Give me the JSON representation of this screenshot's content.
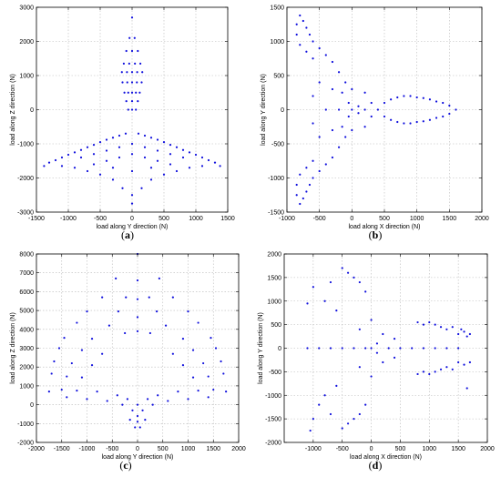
{
  "figure": {
    "panel_letters": [
      "(a)",
      "(b)",
      "(c)",
      "(d)"
    ]
  },
  "chart_data": [
    {
      "id": "a",
      "type": "scatter",
      "panel_label": "(a)",
      "xlabel": "load along Y direction (N)",
      "ylabel": "load along Z direction (N)",
      "xlim": [
        -1500,
        1500
      ],
      "ylim": [
        -3000,
        3000
      ],
      "xticks": [
        -1500,
        -1000,
        -500,
        0,
        500,
        1000,
        1500
      ],
      "yticks": [
        -3000,
        -2000,
        -1000,
        0,
        1000,
        2000,
        3000
      ],
      "grid": true,
      "marker_color": "#1010dd",
      "points": [
        [
          0,
          2700
        ],
        [
          -40,
          2100
        ],
        [
          40,
          2100
        ],
        [
          -90,
          1720
        ],
        [
          0,
          1720
        ],
        [
          90,
          1720
        ],
        [
          -130,
          1350
        ],
        [
          -45,
          1350
        ],
        [
          45,
          1350
        ],
        [
          130,
          1350
        ],
        [
          -160,
          1100
        ],
        [
          -80,
          1100
        ],
        [
          0,
          1100
        ],
        [
          80,
          1100
        ],
        [
          160,
          1100
        ],
        [
          -150,
          800
        ],
        [
          -75,
          800
        ],
        [
          0,
          800
        ],
        [
          75,
          800
        ],
        [
          150,
          800
        ],
        [
          -120,
          500
        ],
        [
          -60,
          500
        ],
        [
          0,
          500
        ],
        [
          60,
          500
        ],
        [
          120,
          500
        ],
        [
          -90,
          250
        ],
        [
          0,
          250
        ],
        [
          90,
          250
        ],
        [
          -60,
          0
        ],
        [
          0,
          0
        ],
        [
          60,
          0
        ],
        [
          -1380,
          -1650
        ],
        [
          -1300,
          -1550
        ],
        [
          -1200,
          -1480
        ],
        [
          -1100,
          -1400
        ],
        [
          -1000,
          -1320
        ],
        [
          -900,
          -1250
        ],
        [
          -800,
          -1180
        ],
        [
          -700,
          -1100
        ],
        [
          -600,
          -1030
        ],
        [
          -500,
          -950
        ],
        [
          -400,
          -880
        ],
        [
          -300,
          -820
        ],
        [
          -200,
          -760
        ],
        [
          -100,
          -700
        ],
        [
          1380,
          -1650
        ],
        [
          1300,
          -1550
        ],
        [
          1200,
          -1480
        ],
        [
          1100,
          -1400
        ],
        [
          1000,
          -1320
        ],
        [
          900,
          -1250
        ],
        [
          800,
          -1180
        ],
        [
          700,
          -1100
        ],
        [
          600,
          -1030
        ],
        [
          500,
          -950
        ],
        [
          400,
          -880
        ],
        [
          300,
          -820
        ],
        [
          200,
          -760
        ],
        [
          100,
          -700
        ],
        [
          -1100,
          -1650
        ],
        [
          -900,
          -1700
        ],
        [
          -700,
          -1800
        ],
        [
          -500,
          -1900
        ],
        [
          -300,
          -2050
        ],
        [
          -150,
          -2300
        ],
        [
          0,
          -2500
        ],
        [
          150,
          -2300
        ],
        [
          300,
          -2050
        ],
        [
          500,
          -1900
        ],
        [
          700,
          -1800
        ],
        [
          900,
          -1700
        ],
        [
          1100,
          -1650
        ],
        [
          0,
          -2750
        ],
        [
          -800,
          -1400
        ],
        [
          -600,
          -1300
        ],
        [
          -400,
          -1200
        ],
        [
          -200,
          -1100
        ],
        [
          0,
          -1000
        ],
        [
          200,
          -1100
        ],
        [
          400,
          -1200
        ],
        [
          600,
          -1300
        ],
        [
          800,
          -1400
        ],
        [
          -600,
          -1600
        ],
        [
          -400,
          -1500
        ],
        [
          -200,
          -1400
        ],
        [
          0,
          -1300
        ],
        [
          200,
          -1400
        ],
        [
          400,
          -1500
        ],
        [
          600,
          -1600
        ],
        [
          -300,
          -1700
        ],
        [
          0,
          -1800
        ],
        [
          300,
          -1700
        ]
      ]
    },
    {
      "id": "b",
      "type": "scatter",
      "panel_label": "(b)",
      "xlabel": "load along X direction (N)",
      "ylabel": "load along Y direction (N)",
      "xlim": [
        -1000,
        2000
      ],
      "ylim": [
        -1500,
        1500
      ],
      "xticks": [
        -1000,
        -500,
        0,
        500,
        1000,
        1500,
        2000
      ],
      "yticks": [
        -1500,
        -1000,
        -500,
        0,
        500,
        1000,
        1500
      ],
      "grid": true,
      "marker_color": "#1010dd",
      "points": [
        [
          1600,
          0
        ],
        [
          1500,
          60
        ],
        [
          1500,
          -60
        ],
        [
          1400,
          100
        ],
        [
          1400,
          -100
        ],
        [
          1300,
          120
        ],
        [
          1300,
          -120
        ],
        [
          1200,
          150
        ],
        [
          1200,
          -150
        ],
        [
          1100,
          170
        ],
        [
          1100,
          -170
        ],
        [
          1000,
          180
        ],
        [
          1000,
          -180
        ],
        [
          900,
          200
        ],
        [
          900,
          -200
        ],
        [
          800,
          200
        ],
        [
          800,
          -200
        ],
        [
          700,
          180
        ],
        [
          700,
          -180
        ],
        [
          600,
          150
        ],
        [
          600,
          -150
        ],
        [
          500,
          100
        ],
        [
          500,
          -100
        ],
        [
          -800,
          1380
        ],
        [
          -750,
          1300
        ],
        [
          -700,
          1200
        ],
        [
          -650,
          1100
        ],
        [
          -600,
          1000
        ],
        [
          -500,
          900
        ],
        [
          -400,
          800
        ],
        [
          -300,
          700
        ],
        [
          -200,
          550
        ],
        [
          -100,
          400
        ],
        [
          -850,
          1250
        ],
        [
          -850,
          1100
        ],
        [
          -800,
          950
        ],
        [
          -700,
          850
        ],
        [
          -600,
          750
        ],
        [
          -800,
          -1380
        ],
        [
          -750,
          -1300
        ],
        [
          -700,
          -1200
        ],
        [
          -650,
          -1100
        ],
        [
          -600,
          -1000
        ],
        [
          -500,
          -900
        ],
        [
          -400,
          -800
        ],
        [
          -300,
          -700
        ],
        [
          -200,
          -550
        ],
        [
          -100,
          -400
        ],
        [
          -850,
          -1250
        ],
        [
          -850,
          -1100
        ],
        [
          -800,
          -950
        ],
        [
          -700,
          -850
        ],
        [
          -600,
          -750
        ],
        [
          0,
          0
        ],
        [
          100,
          50
        ],
        [
          100,
          -50
        ],
        [
          -50,
          100
        ],
        [
          -50,
          -100
        ],
        [
          200,
          0
        ],
        [
          300,
          100
        ],
        [
          300,
          -100
        ],
        [
          -150,
          250
        ],
        [
          -150,
          -250
        ],
        [
          -300,
          300
        ],
        [
          -300,
          -300
        ],
        [
          -500,
          400
        ],
        [
          -500,
          -400
        ],
        [
          -600,
          200
        ],
        [
          -600,
          -200
        ],
        [
          0,
          300
        ],
        [
          0,
          -300
        ],
        [
          200,
          250
        ],
        [
          200,
          -250
        ],
        [
          400,
          0
        ],
        [
          -400,
          0
        ],
        [
          -200,
          0
        ]
      ]
    },
    {
      "id": "c",
      "type": "scatter",
      "panel_label": "(c)",
      "xlabel": "load along Y direction (N)",
      "ylabel": "load along Z direction (N)",
      "xlim": [
        -2000,
        2000
      ],
      "ylim": [
        -2000,
        8000
      ],
      "xticks": [
        -2000,
        -1500,
        -1000,
        -500,
        0,
        500,
        1000,
        1500,
        2000
      ],
      "yticks": [
        -2000,
        -1000,
        0,
        1000,
        2000,
        3000,
        4000,
        5000,
        6000,
        7000,
        8000
      ],
      "grid": true,
      "marker_color": "#1010dd",
      "points": [
        [
          0,
          8000
        ],
        [
          -430,
          6700
        ],
        [
          430,
          6700
        ],
        [
          0,
          6600
        ],
        [
          -700,
          5700
        ],
        [
          700,
          5700
        ],
        [
          -230,
          5700
        ],
        [
          230,
          5700
        ],
        [
          0,
          5600
        ],
        [
          -1000,
          4950
        ],
        [
          1000,
          4950
        ],
        [
          -380,
          4950
        ],
        [
          380,
          4950
        ],
        [
          0,
          4650
        ],
        [
          -1200,
          4350
        ],
        [
          1200,
          4350
        ],
        [
          -560,
          4200
        ],
        [
          560,
          4200
        ],
        [
          0,
          3900
        ],
        [
          -1450,
          3550
        ],
        [
          1450,
          3550
        ],
        [
          -900,
          3500
        ],
        [
          900,
          3500
        ],
        [
          -250,
          3800
        ],
        [
          250,
          3800
        ],
        [
          -1550,
          3000
        ],
        [
          1550,
          3000
        ],
        [
          -1100,
          2900
        ],
        [
          1100,
          2900
        ],
        [
          -700,
          2700
        ],
        [
          700,
          2700
        ],
        [
          -1650,
          2300
        ],
        [
          1650,
          2300
        ],
        [
          -1300,
          2200
        ],
        [
          1300,
          2200
        ],
        [
          -900,
          2100
        ],
        [
          900,
          2100
        ],
        [
          -1700,
          1650
        ],
        [
          1700,
          1650
        ],
        [
          -1400,
          1500
        ],
        [
          1400,
          1500
        ],
        [
          -1100,
          1450
        ],
        [
          1100,
          1450
        ],
        [
          -1750,
          700
        ],
        [
          1750,
          700
        ],
        [
          -1500,
          800
        ],
        [
          1500,
          800
        ],
        [
          -1200,
          750
        ],
        [
          1200,
          750
        ],
        [
          -800,
          700
        ],
        [
          800,
          700
        ],
        [
          -400,
          500
        ],
        [
          400,
          500
        ],
        [
          -200,
          300
        ],
        [
          200,
          300
        ],
        [
          -600,
          200
        ],
        [
          600,
          200
        ],
        [
          -1000,
          300
        ],
        [
          1000,
          300
        ],
        [
          -1400,
          400
        ],
        [
          1400,
          400
        ],
        [
          -300,
          0
        ],
        [
          300,
          0
        ],
        [
          -100,
          -300
        ],
        [
          100,
          -300
        ],
        [
          0,
          -600
        ],
        [
          0,
          -900
        ],
        [
          -50,
          -1200
        ],
        [
          50,
          -1200
        ],
        [
          -150,
          -800
        ],
        [
          150,
          -800
        ],
        [
          0,
          0
        ]
      ]
    },
    {
      "id": "d",
      "type": "scatter",
      "panel_label": "(d)",
      "xlabel": "load along X direction (N)",
      "ylabel": "load along Y direction (N)",
      "xlim": [
        -1500,
        2000
      ],
      "ylim": [
        -2000,
        2000
      ],
      "xticks": [
        -1000,
        -500,
        0,
        500,
        1000,
        1500,
        2000
      ],
      "yticks": [
        -2000,
        -1500,
        -1000,
        -500,
        0,
        500,
        1000,
        1500,
        2000
      ],
      "grid": true,
      "marker_color": "#1010dd",
      "points": [
        [
          1700,
          300
        ],
        [
          1650,
          250
        ],
        [
          1600,
          350
        ],
        [
          1550,
          400
        ],
        [
          1500,
          300
        ],
        [
          1400,
          450
        ],
        [
          1300,
          400
        ],
        [
          1200,
          450
        ],
        [
          1100,
          500
        ],
        [
          1000,
          550
        ],
        [
          900,
          500
        ],
        [
          800,
          550
        ],
        [
          1700,
          -300
        ],
        [
          1650,
          -850
        ],
        [
          1600,
          -350
        ],
        [
          1500,
          -300
        ],
        [
          1400,
          -450
        ],
        [
          1300,
          -400
        ],
        [
          1200,
          -450
        ],
        [
          1100,
          -500
        ],
        [
          1000,
          -550
        ],
        [
          900,
          -500
        ],
        [
          800,
          -550
        ],
        [
          1500,
          0
        ],
        [
          1300,
          0
        ],
        [
          1100,
          0
        ],
        [
          900,
          0
        ],
        [
          700,
          0
        ],
        [
          500,
          0
        ],
        [
          -1100,
          950
        ],
        [
          -1000,
          1300
        ],
        [
          -1000,
          -1500
        ],
        [
          -1050,
          -1750
        ],
        [
          -900,
          -1200
        ],
        [
          -500,
          1700
        ],
        [
          -400,
          1600
        ],
        [
          -300,
          1500
        ],
        [
          -200,
          1400
        ],
        [
          -100,
          1200
        ],
        [
          -500,
          -1700
        ],
        [
          -400,
          -1600
        ],
        [
          -300,
          -1500
        ],
        [
          -200,
          -1400
        ],
        [
          -100,
          -1200
        ],
        [
          -700,
          1400
        ],
        [
          -700,
          -1400
        ],
        [
          -800,
          1000
        ],
        [
          -800,
          -1000
        ],
        [
          -600,
          800
        ],
        [
          -600,
          -800
        ],
        [
          -1100,
          0
        ],
        [
          -900,
          0
        ],
        [
          -700,
          0
        ],
        [
          -500,
          0
        ],
        [
          -300,
          0
        ],
        [
          -100,
          0
        ],
        [
          0,
          0
        ],
        [
          100,
          100
        ],
        [
          100,
          -100
        ],
        [
          200,
          300
        ],
        [
          200,
          -300
        ],
        [
          300,
          0
        ],
        [
          -200,
          400
        ],
        [
          -200,
          -400
        ],
        [
          0,
          600
        ],
        [
          0,
          -600
        ],
        [
          400,
          200
        ],
        [
          400,
          -200
        ]
      ]
    }
  ]
}
